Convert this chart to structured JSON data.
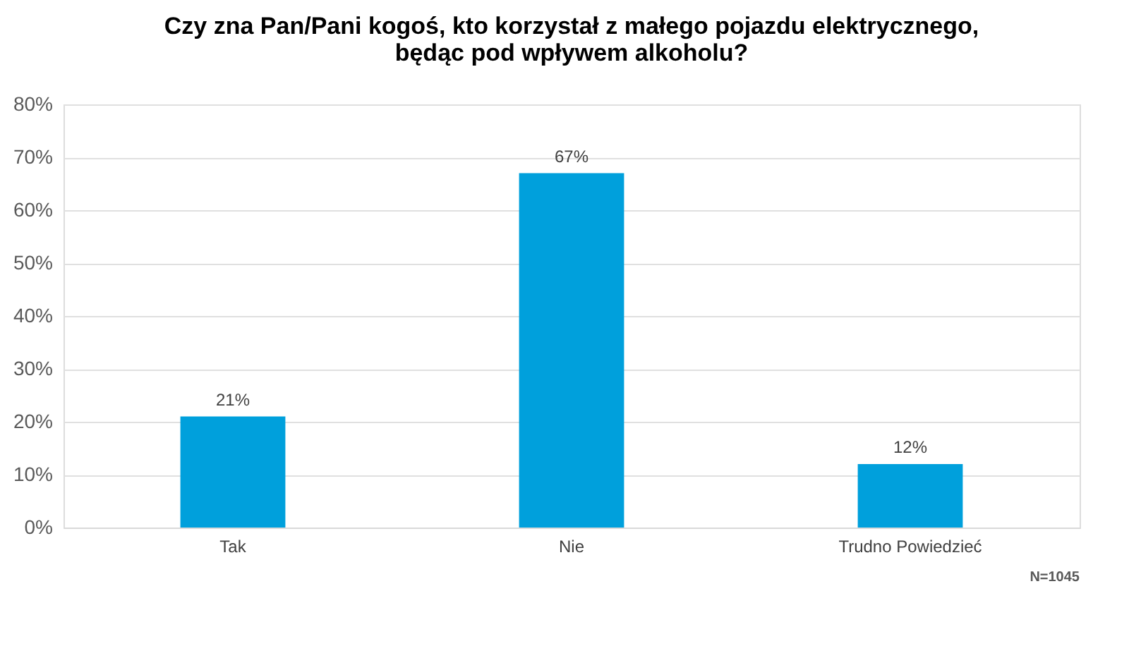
{
  "chart_data": {
    "type": "bar",
    "title": [
      "Czy zna Pan/Pani kogoś, kto korzystał z małego pojazdu elektrycznego,",
      "będąc pod wpływem alkoholu?"
    ],
    "categories": [
      "Tak",
      "Nie",
      "Trudno Powiedzieć"
    ],
    "values": [
      21,
      67,
      12
    ],
    "value_labels": [
      "21%",
      "67%",
      "12%"
    ],
    "color": "#00a0dc",
    "ylim": [
      0,
      80
    ],
    "yticks": [
      {
        "value": 0,
        "label": "0%"
      },
      {
        "value": 10,
        "label": "10%"
      },
      {
        "value": 20,
        "label": "20%"
      },
      {
        "value": 30,
        "label": "30%"
      },
      {
        "value": 40,
        "label": "40%"
      },
      {
        "value": 50,
        "label": "50%"
      },
      {
        "value": 60,
        "label": "60%"
      },
      {
        "value": 70,
        "label": "70%"
      },
      {
        "value": 80,
        "label": "80%"
      }
    ],
    "grid": "y",
    "annotations": [
      "N=1045"
    ]
  }
}
